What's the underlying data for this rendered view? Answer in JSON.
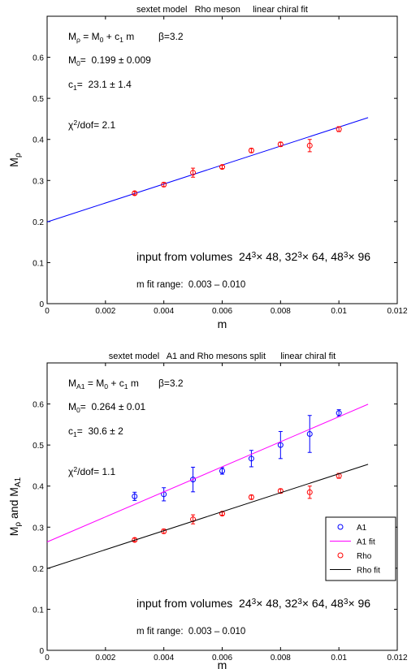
{
  "chart_data": [
    {
      "type": "line",
      "title": "sextet model   Rho meson     linear chiral fit",
      "xlabel": "m",
      "ylabel": {
        "main": "M",
        "sub": "ρ"
      },
      "xlim": [
        0,
        0.012
      ],
      "ylim": [
        0,
        0.7
      ],
      "xticks": [
        "0",
        "0.002",
        "0.004",
        "0.006",
        "0.008",
        "0.01",
        "0.012"
      ],
      "yticks": [
        "0",
        "0.1",
        "0.2",
        "0.3",
        "0.4",
        "0.5",
        "0.6"
      ],
      "grid": false,
      "annotations": {
        "formula": {
          "lhs": "M",
          "lhs_sub": "ρ",
          "eq": " = M",
          "m0_sub": "0",
          "plus": " + c",
          "c_sub": "1",
          "tail": " m",
          "beta": "β=3.2"
        },
        "m0": {
          "label": "M",
          "sub": "0",
          "value": "=  0.199 ± 0.009"
        },
        "c1": {
          "label": "c",
          "sub": "1",
          "value": "=  23.1 ± 1.4"
        },
        "chi": {
          "label": "χ",
          "sup": "2",
          "value": "/dof= 2.1"
        },
        "input": {
          "prefix": "input from volumes  24",
          "s1": "3",
          "t1": "× 48, 32",
          "s2": "3",
          "t2": "× 64, 48",
          "s3": "3",
          "t3": "× 96"
        },
        "range": "m fit range:  0.003 – 0.010"
      },
      "series": [
        {
          "kind": "fit",
          "color": "#0000ff",
          "x": [
            0,
            0.011
          ],
          "y": [
            0.199,
            0.4531
          ]
        },
        {
          "kind": "points",
          "color": "#ff0000",
          "x": [
            0.003,
            0.004,
            0.005,
            0.006,
            0.007,
            0.008,
            0.009,
            0.01
          ],
          "y": [
            0.269,
            0.29,
            0.319,
            0.333,
            0.373,
            0.388,
            0.385,
            0.425
          ],
          "err": [
            0.004,
            0.005,
            0.011,
            0.004,
            0.005,
            0.005,
            0.015,
            0.006
          ]
        }
      ],
      "legend": null
    },
    {
      "type": "line",
      "title": "sextet model   A1 and Rho mesons split      linear chiral fit",
      "xlabel": "m",
      "ylabel": {
        "main": "M",
        "sub": "ρ",
        "mid": " and M",
        "sub2": "A1"
      },
      "xlim": [
        0,
        0.012
      ],
      "ylim": [
        0,
        0.7
      ],
      "xticks": [
        "0",
        "0.002",
        "0.004",
        "0.006",
        "0.008",
        "0.01",
        "0.012"
      ],
      "yticks": [
        "0",
        "0.1",
        "0.2",
        "0.3",
        "0.4",
        "0.5",
        "0.6"
      ],
      "grid": false,
      "annotations": {
        "formula": {
          "lhs": "M",
          "lhs_sub": "A1",
          "eq": " = M",
          "m0_sub": "0",
          "plus": " + c",
          "c_sub": "1",
          "tail": " m",
          "beta": "β=3.2"
        },
        "m0": {
          "label": "M",
          "sub": "0",
          "value": "=  0.264 ± 0.01"
        },
        "c1": {
          "label": "c",
          "sub": "1",
          "value": "=  30.6 ± 2"
        },
        "chi": {
          "label": "χ",
          "sup": "2",
          "value": "/dof= 1.1"
        },
        "input": {
          "prefix": "input from volumes  24",
          "s1": "3",
          "t1": "× 48, 32",
          "s2": "3",
          "t2": "× 64, 48",
          "s3": "3",
          "t3": "× 96"
        },
        "range": "m fit range:  0.003 – 0.010"
      },
      "series": [
        {
          "name": "A1",
          "kind": "points",
          "color": "#0000ff",
          "x": [
            0.003,
            0.004,
            0.005,
            0.006,
            0.007,
            0.008,
            0.009,
            0.01
          ],
          "y": [
            0.375,
            0.38,
            0.416,
            0.437,
            0.467,
            0.5,
            0.527,
            0.578
          ],
          "err": [
            0.01,
            0.016,
            0.03,
            0.008,
            0.02,
            0.033,
            0.045,
            0.008
          ]
        },
        {
          "name": "A1 fit",
          "kind": "fit",
          "color": "#ff00ff",
          "x": [
            0,
            0.011
          ],
          "y": [
            0.264,
            0.5994
          ]
        },
        {
          "name": "Rho",
          "kind": "points",
          "color": "#ff0000",
          "x": [
            0.003,
            0.004,
            0.005,
            0.006,
            0.007,
            0.008,
            0.009,
            0.01
          ],
          "y": [
            0.269,
            0.29,
            0.319,
            0.333,
            0.373,
            0.388,
            0.385,
            0.425
          ],
          "err": [
            0.004,
            0.005,
            0.011,
            0.004,
            0.005,
            0.005,
            0.015,
            0.006
          ]
        },
        {
          "name": "Rho fit",
          "kind": "fit",
          "color": "#000000",
          "x": [
            0,
            0.011
          ],
          "y": [
            0.199,
            0.4531
          ]
        }
      ],
      "legend": "lower-right"
    }
  ]
}
